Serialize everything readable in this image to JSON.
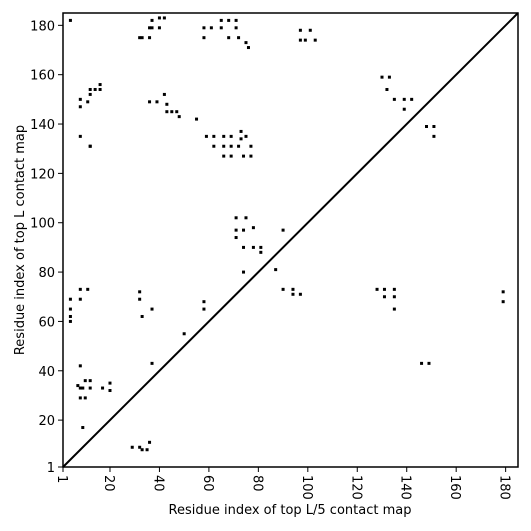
{
  "chart_data": {
    "type": "scatter",
    "xlabel": "Residue index of top L/5 contact map",
    "ylabel": "Residue index of top L contact map",
    "xlim": [
      1,
      185
    ],
    "ylim": [
      1,
      185
    ],
    "xticks": [
      1,
      20,
      40,
      60,
      80,
      100,
      120,
      140,
      160,
      180
    ],
    "yticks": [
      1,
      20,
      40,
      60,
      80,
      100,
      120,
      140,
      160,
      180
    ],
    "color": "#000000",
    "x": [
      4,
      37,
      40,
      42,
      37,
      36,
      40,
      33,
      32,
      36,
      58,
      61,
      65,
      65,
      68,
      71,
      71,
      68,
      72,
      58,
      75,
      76,
      97,
      101,
      97,
      99,
      103,
      16,
      12,
      12,
      8,
      8,
      11,
      14,
      16,
      36,
      39,
      42,
      43,
      43,
      45,
      47,
      48,
      55,
      8,
      12,
      12,
      59,
      62,
      62,
      66,
      66,
      69,
      69,
      69,
      66,
      73,
      72,
      74,
      77,
      77,
      75,
      73,
      130,
      133,
      132,
      135,
      139,
      139,
      142,
      148,
      151,
      151,
      71,
      71,
      71,
      74,
      75,
      78,
      74,
      78,
      81,
      81,
      90,
      74,
      87,
      90,
      94,
      94,
      97,
      128,
      131,
      131,
      135,
      135,
      135,
      146,
      149,
      179,
      179,
      58,
      58,
      37,
      33,
      32,
      32,
      50,
      4,
      4,
      4,
      4,
      8,
      11,
      8,
      8,
      37,
      7,
      10,
      12,
      8,
      9,
      12,
      17,
      20,
      20,
      8,
      10,
      9,
      29,
      32,
      36,
      33,
      35
    ],
    "values": [
      182,
      182,
      183,
      183,
      179,
      179,
      179,
      175,
      175,
      175,
      179,
      179,
      182,
      179,
      182,
      182,
      179,
      175,
      175,
      175,
      173,
      171,
      178,
      178,
      174,
      174,
      174,
      156,
      154,
      152,
      150,
      147,
      149,
      154,
      154,
      149,
      149,
      152,
      148,
      145,
      145,
      145,
      143,
      142,
      135,
      131,
      131,
      135,
      135,
      131,
      135,
      131,
      135,
      131,
      127,
      127,
      134,
      131,
      127,
      131,
      127,
      135,
      137,
      159,
      159,
      154,
      150,
      150,
      146,
      150,
      139,
      139,
      135,
      102,
      97,
      94,
      97,
      102,
      98,
      90,
      90,
      88,
      90,
      97,
      80,
      81,
      73,
      73,
      71,
      71,
      73,
      73,
      70,
      73,
      70,
      65,
      43,
      43,
      72,
      68,
      68,
      65,
      65,
      62,
      72,
      69,
      55,
      69,
      65,
      62,
      60,
      73,
      73,
      69,
      42,
      43,
      34,
      36,
      36,
      33,
      33,
      33,
      33,
      35,
      32,
      29,
      29,
      17,
      9,
      9,
      11,
      8,
      8
    ]
  }
}
